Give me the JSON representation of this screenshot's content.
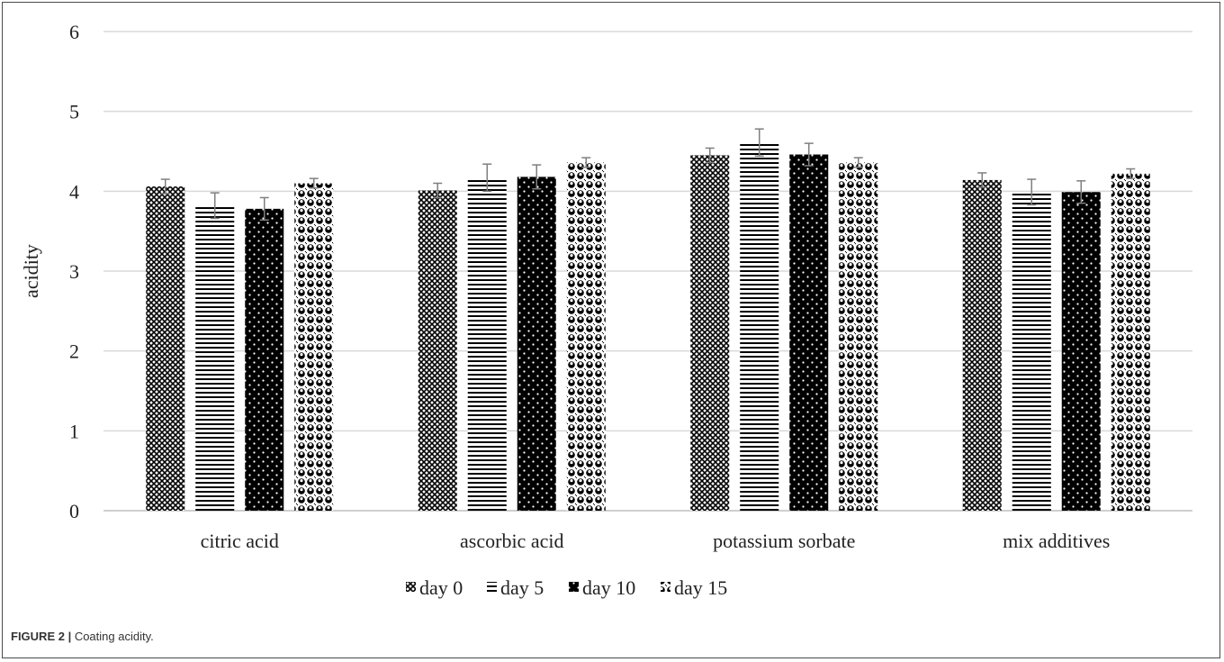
{
  "caption": {
    "label": "FIGURE 2 |",
    "text": " Coating acidity."
  },
  "chart_data": {
    "type": "bar",
    "title": "",
    "xlabel": "",
    "ylabel": "acidity",
    "ylim": [
      0,
      6
    ],
    "yticks": [
      0,
      1,
      2,
      3,
      4,
      5,
      6
    ],
    "grid": true,
    "legend_position": "bottom",
    "categories": [
      "citric acid",
      "ascorbic acid",
      "potassium sorbate",
      "mix additives"
    ],
    "series": [
      {
        "name": "day 0",
        "pattern": "crosshatch",
        "values": [
          4.06,
          4.01,
          4.45,
          4.14
        ],
        "errors": [
          0.09,
          0.09,
          0.09,
          0.09
        ]
      },
      {
        "name": "day 5",
        "pattern": "horizontal",
        "values": [
          3.82,
          4.17,
          4.61,
          3.99
        ],
        "errors": [
          0.16,
          0.17,
          0.17,
          0.16
        ]
      },
      {
        "name": "day 10",
        "pattern": "dots-on-black",
        "values": [
          3.78,
          4.18,
          4.46,
          3.99
        ],
        "errors": [
          0.14,
          0.15,
          0.14,
          0.14
        ]
      },
      {
        "name": "day 15",
        "pattern": "circles",
        "values": [
          4.1,
          4.36,
          4.36,
          4.22
        ],
        "errors": [
          0.06,
          0.06,
          0.06,
          0.06
        ]
      }
    ],
    "colors": {
      "axis": "#bfbfbf",
      "grid": "#d9d9d9",
      "error": "#7f7f7f",
      "ink": "#000000"
    }
  }
}
